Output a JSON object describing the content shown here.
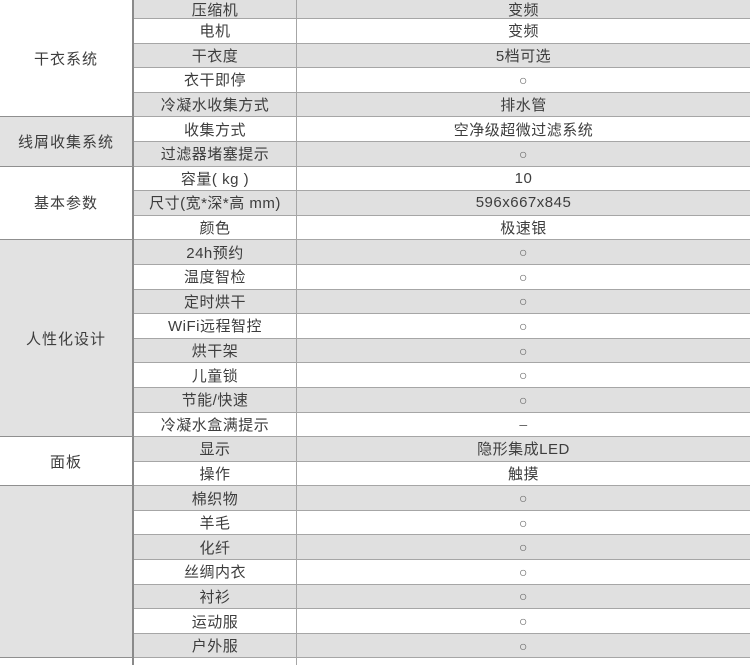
{
  "table": {
    "sections": [
      {
        "category": "干衣系统",
        "shaded": false,
        "rows": [
          {
            "attr": "压缩机",
            "value": "变频"
          },
          {
            "attr": "电机",
            "value": "变频"
          },
          {
            "attr": "干衣度",
            "value": "5档可选"
          },
          {
            "attr": "衣干即停",
            "value": "○"
          },
          {
            "attr": "冷凝水收集方式",
            "value": "排水管"
          }
        ]
      },
      {
        "category": "线屑收集系统",
        "shaded": true,
        "rows": [
          {
            "attr": "收集方式",
            "value": "空净级超微过滤系统"
          },
          {
            "attr": "过滤器堵塞提示",
            "value": "○"
          }
        ]
      },
      {
        "category": "基本参数",
        "shaded": false,
        "rows": [
          {
            "attr": "容量( kg )",
            "value": "10"
          },
          {
            "attr": "尺寸(宽*深*高 mm)",
            "value": "596x667x845"
          },
          {
            "attr": "颜色",
            "value": "极速银"
          }
        ]
      },
      {
        "category": "人性化设计",
        "shaded": true,
        "rows": [
          {
            "attr": "24h预约",
            "value": "○"
          },
          {
            "attr": "温度智检",
            "value": "○"
          },
          {
            "attr": "定时烘干",
            "value": "○"
          },
          {
            "attr": "WiFi远程智控",
            "value": "○"
          },
          {
            "attr": "烘干架",
            "value": "○"
          },
          {
            "attr": "儿童锁",
            "value": "○"
          },
          {
            "attr": "节能/快速",
            "value": "○"
          },
          {
            "attr": "冷凝水盒满提示",
            "value": "–"
          }
        ]
      },
      {
        "category": "面板",
        "shaded": false,
        "rows": [
          {
            "attr": "显示",
            "value": "隐形集成LED"
          },
          {
            "attr": "操作",
            "value": "触摸"
          }
        ]
      },
      {
        "category": "",
        "shaded": true,
        "rows": [
          {
            "attr": "棉织物",
            "value": "○"
          },
          {
            "attr": "羊毛",
            "value": "○"
          },
          {
            "attr": "化纤",
            "value": "○"
          },
          {
            "attr": "丝绸内衣",
            "value": "○"
          },
          {
            "attr": "衬衫",
            "value": "○"
          },
          {
            "attr": "运动服",
            "value": "○"
          },
          {
            "attr": "户外服",
            "value": "○"
          }
        ]
      }
    ]
  },
  "colors": {
    "background": "#ffffff",
    "row_shaded": "#e0e0e0",
    "category_shaded": "#e2e2e2",
    "row_border": "#a6a6a6",
    "section_border": "#8f8f8f",
    "column_border": "#8a8a8a",
    "text": "#3d3d3d"
  }
}
